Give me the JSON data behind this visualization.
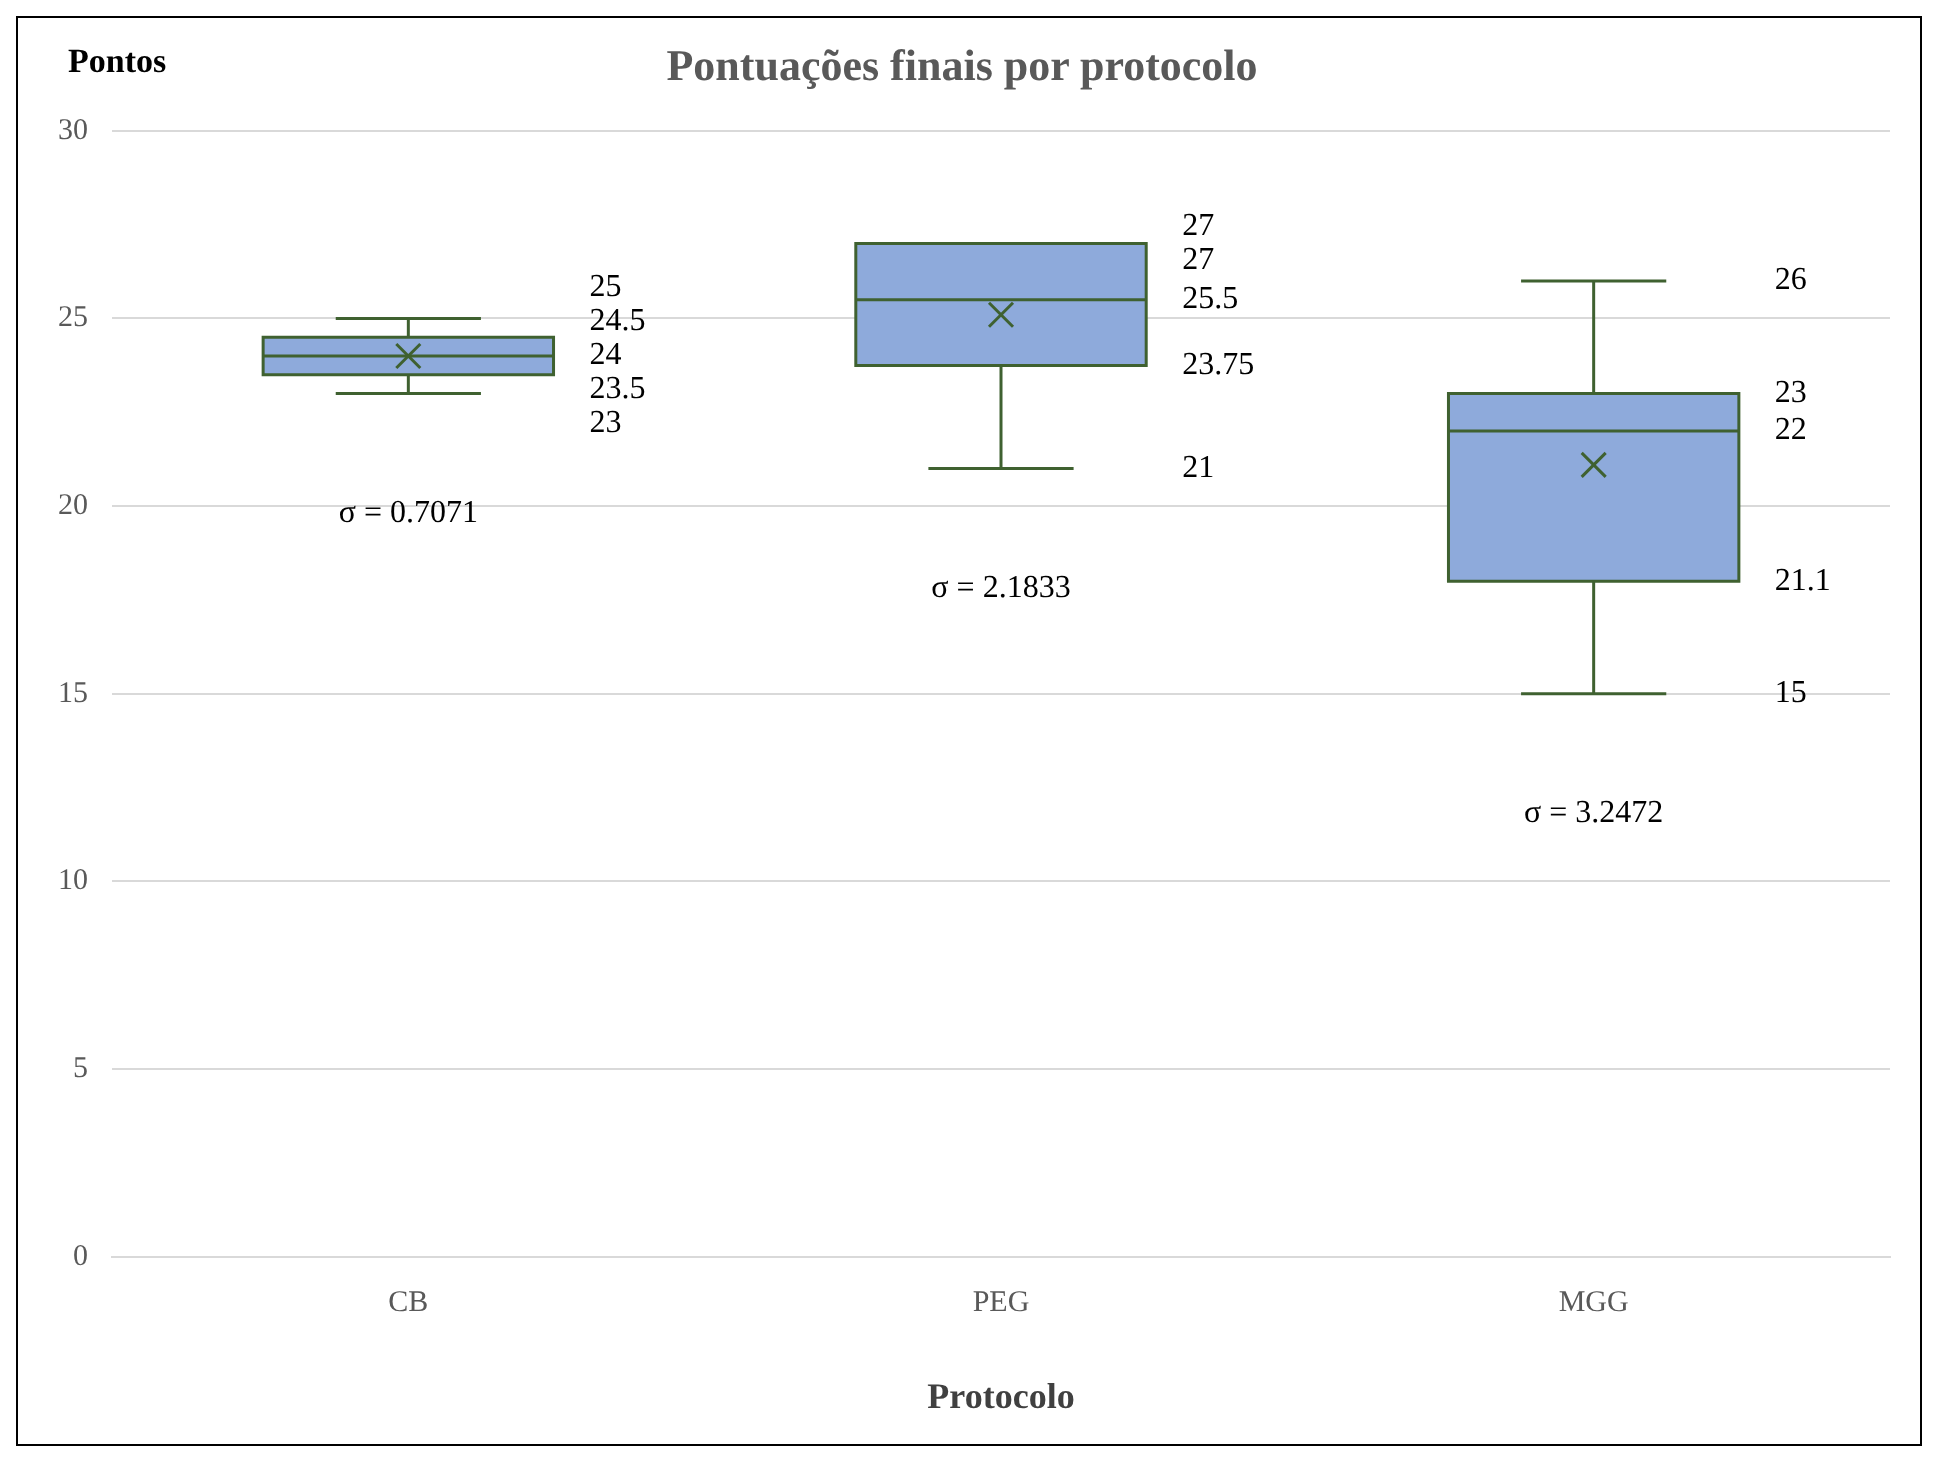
{
  "chart_data": {
    "type": "box",
    "title": "Pontuações finais por protocolo",
    "ylabel": "Pontos",
    "xlabel": "Protocolo",
    "categories": [
      "CB",
      "PEG",
      "MGG"
    ],
    "series": [
      {
        "color": "#8eaadb",
        "boxes": [
          {
            "low": 23,
            "q1": 23.5,
            "median": 24,
            "q3": 24.5,
            "high": 25,
            "mean": 24
          },
          {
            "low": 21,
            "q1": 23.75,
            "median": 25.5,
            "q3": 27,
            "high": 27,
            "mean": 25.1
          },
          {
            "low": 15,
            "q1": 18,
            "median": 22,
            "q3": 23,
            "high": 26,
            "mean": 21.1
          }
        ]
      }
    ],
    "ylim": [
      0,
      30
    ],
    "yticks": [
      0,
      5,
      10,
      15,
      20,
      25,
      30
    ],
    "grid": "y",
    "legend": false,
    "annotations": [
      "25",
      "24.5",
      "24",
      "23.5",
      "23",
      "σ = 0.7071",
      "27",
      "27",
      "25.5",
      "23.75",
      "21",
      "σ = 2.1833",
      "26",
      "23",
      "22",
      "21.1",
      "15",
      "σ = 3.2472"
    ]
  }
}
